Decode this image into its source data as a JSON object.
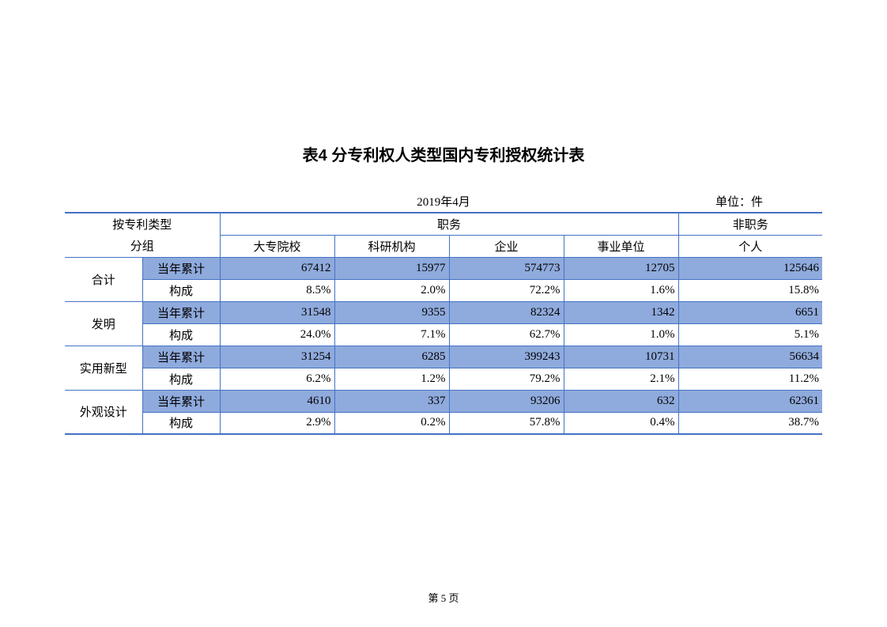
{
  "title": "表4 分专利权人类型国内专利授权统计表",
  "date": "2019年4月",
  "unit": "单位：件",
  "page": "第 5 页",
  "headers": {
    "group_by": "按专利类型",
    "grouping": "分组",
    "duty": "职务",
    "non_duty": "非职务",
    "cols": [
      "大专院校",
      "科研机构",
      "企业",
      "事业单位",
      "个人"
    ]
  },
  "row_sub_labels": {
    "cumulative": "当年累计",
    "composition": "构成"
  },
  "categories": [
    {
      "name": "合计",
      "cumulative": [
        "67412",
        "15977",
        "574773",
        "12705",
        "125646"
      ],
      "composition": [
        "8.5%",
        "2.0%",
        "72.2%",
        "1.6%",
        "15.8%"
      ]
    },
    {
      "name": "发明",
      "cumulative": [
        "31548",
        "9355",
        "82324",
        "1342",
        "6651"
      ],
      "composition": [
        "24.0%",
        "7.1%",
        "62.7%",
        "1.0%",
        "5.1%"
      ]
    },
    {
      "name": "实用新型",
      "cumulative": [
        "31254",
        "6285",
        "399243",
        "10731",
        "56634"
      ],
      "composition": [
        "6.2%",
        "1.2%",
        "79.2%",
        "2.1%",
        "11.2%"
      ]
    },
    {
      "name": "外观设计",
      "cumulative": [
        "4610",
        "337",
        "93206",
        "632",
        "62361"
      ],
      "composition": [
        "2.9%",
        "0.2%",
        "57.8%",
        "0.4%",
        "38.7%"
      ]
    }
  ],
  "style": {
    "border_color": "#4472c4",
    "shade_color": "#8faadc",
    "font_size_body": 15,
    "font_size_title": 20
  }
}
